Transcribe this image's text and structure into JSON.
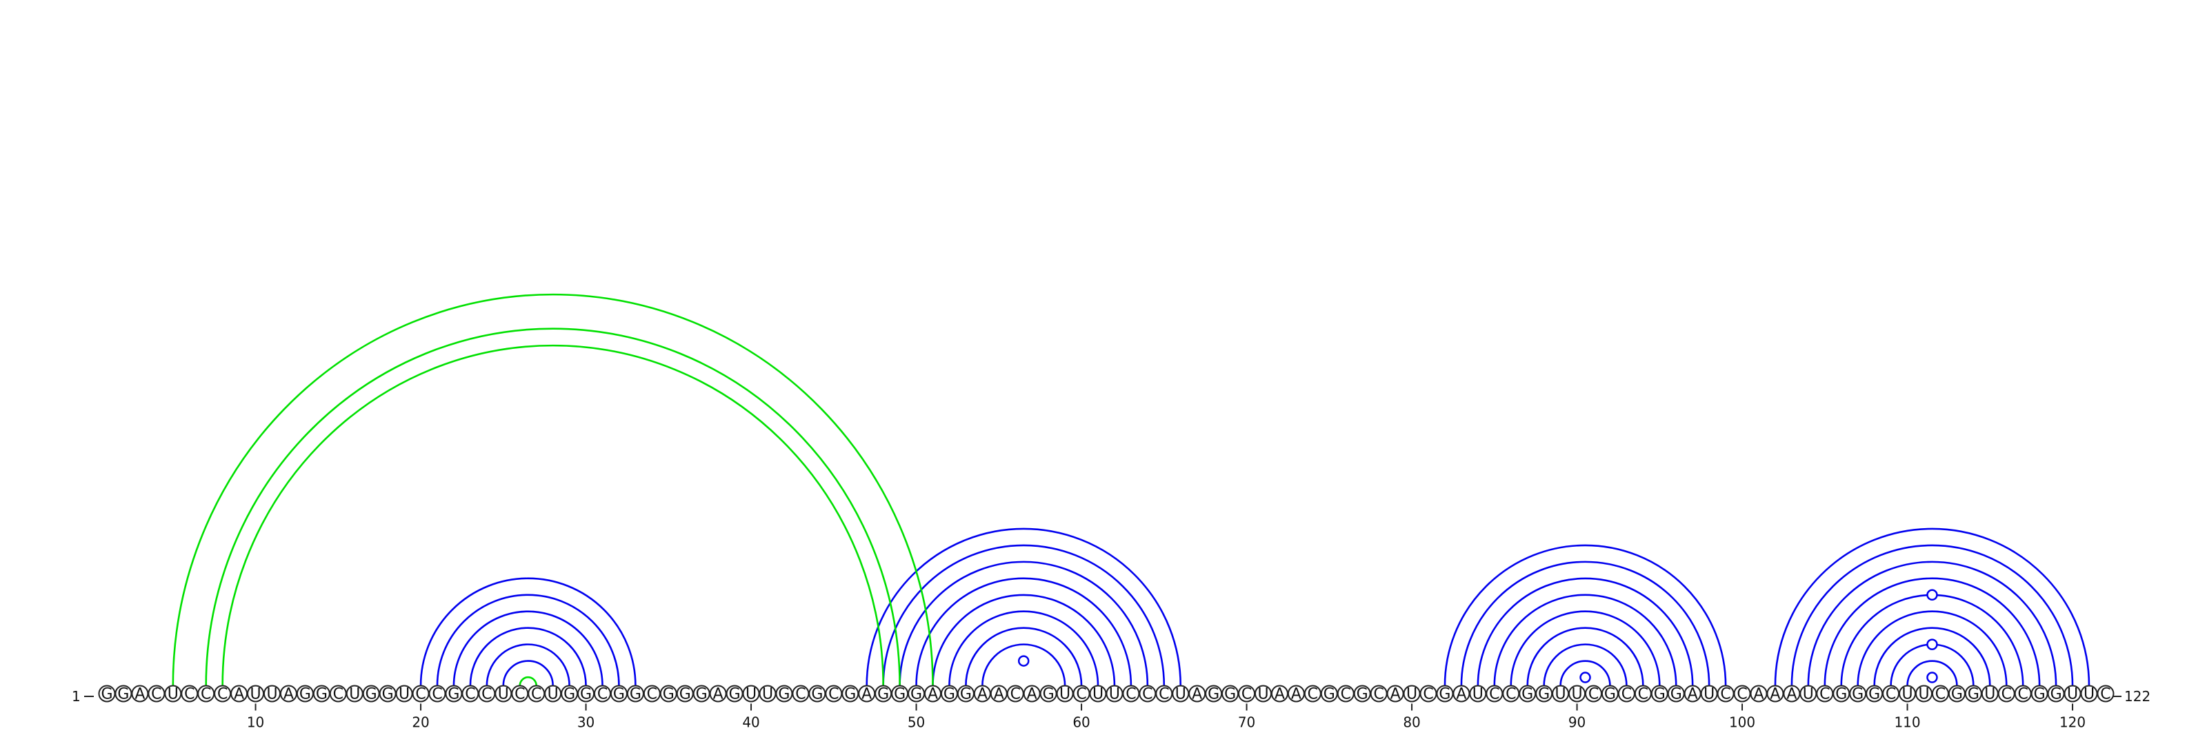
{
  "sequence": {
    "residues": "GGACUCCCAUUAGGCUGGUCCGCCUCCUGGCGGCGGGAGUUGCGCGAGGGAGGAACAGUCUUCCCUAGGCUAACGCGCAUCGAUCCGGUUCGCCGGAUCCAAAUCGGGCUUCGGUCCGGUUC",
    "length": 122,
    "start_label": "1",
    "end_label": "122"
  },
  "axis": {
    "ticks": [
      "10",
      "20",
      "30",
      "40",
      "50",
      "60",
      "70",
      "80",
      "90",
      "100",
      "110",
      "120"
    ]
  },
  "colors": {
    "nested_pairs": "#0000ee",
    "pseudoknot_pairs": "#00e000",
    "backbone": "#222222"
  },
  "base_pairs": {
    "nested": [
      [
        20,
        33
      ],
      [
        21,
        32
      ],
      [
        22,
        31
      ],
      [
        23,
        30
      ],
      [
        24,
        29
      ],
      [
        25,
        28
      ],
      [
        47,
        66
      ],
      [
        48,
        65
      ],
      [
        49,
        64
      ],
      [
        50,
        63
      ],
      [
        51,
        62
      ],
      [
        52,
        61
      ],
      [
        53,
        60
      ],
      [
        54,
        59
      ],
      [
        82,
        99
      ],
      [
        83,
        98
      ],
      [
        84,
        97
      ],
      [
        85,
        96
      ],
      [
        86,
        95
      ],
      [
        87,
        94
      ],
      [
        88,
        93
      ],
      [
        89,
        92
      ],
      [
        102,
        121
      ],
      [
        103,
        120
      ],
      [
        104,
        119
      ],
      [
        105,
        118
      ],
      [
        106,
        117
      ],
      [
        107,
        116
      ],
      [
        108,
        115
      ],
      [
        109,
        114
      ],
      [
        110,
        113
      ]
    ],
    "pseudoknot": [
      [
        5,
        51
      ],
      [
        7,
        49
      ],
      [
        8,
        48
      ],
      [
        26,
        27
      ]
    ],
    "noncanonical_pairs": [
      [
        55,
        58
      ],
      [
        90,
        91
      ],
      [
        111,
        112
      ],
      [
        109,
        114
      ],
      [
        106,
        117
      ]
    ]
  }
}
